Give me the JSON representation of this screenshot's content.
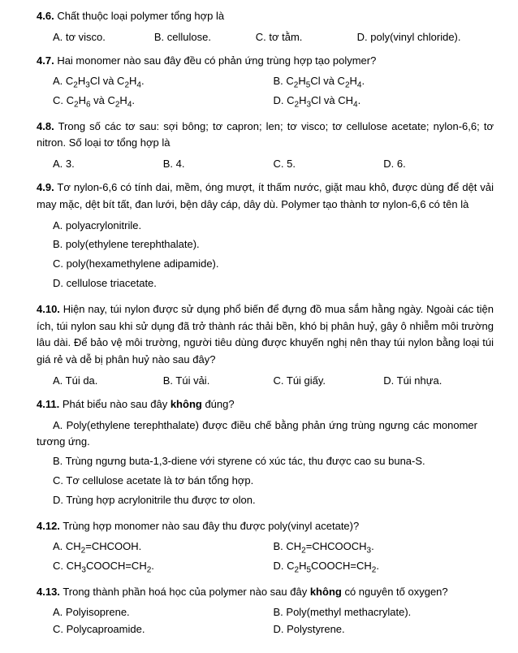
{
  "q46": {
    "num": "4.6.",
    "text": "Chất thuộc loại polymer tổng hợp là",
    "opts": [
      "A. tơ visco.",
      "B. cellulose.",
      "C. tơ tằm.",
      "D. poly(vinyl chloride)."
    ]
  },
  "q47": {
    "num": "4.7.",
    "text": "Hai monomer nào sau đây đều có phản ứng trùng hợp tạo polymer?",
    "opts": [
      "A. C<sub>2</sub>H<sub>3</sub>Cl và C<sub>2</sub>H<sub>4</sub>.",
      "B. C<sub>2</sub>H<sub>5</sub>Cl và C<sub>2</sub>H<sub>4</sub>.",
      "C. C<sub>2</sub>H<sub>6</sub> và C<sub>2</sub>H<sub>4</sub>.",
      "D. C<sub>2</sub>H<sub>3</sub>Cl và CH<sub>4</sub>."
    ]
  },
  "q48": {
    "num": "4.8.",
    "text": "Trong số các tơ sau: sợi bông; tơ capron; len; tơ visco; tơ cellulose acetate; nylon-6,6; tơ nitron. Số loại tơ tổng hợp là",
    "opts": [
      "A. 3.",
      "B. 4.",
      "C. 5.",
      "D. 6."
    ]
  },
  "q49": {
    "num": "4.9.",
    "text": "Tơ nylon-6,6 có tính dai, mềm, óng mượt, ít thấm nước, giặt mau khô, được dùng để dệt vải may mặc, dệt bít tất, đan lưới, bện dây cáp, dây dù. Polymer tạo thành tơ nylon-6,6 có tên là",
    "opts": [
      "A. polyacrylonitrile.",
      "B. poly(ethylene terephthalate).",
      "C. poly(hexamethylene adipamide).",
      "D. cellulose triacetate."
    ]
  },
  "q410": {
    "num": "4.10.",
    "text": "Hiện nay, túi nylon được sử dụng phổ biến để đựng đồ mua sắm hằng ngày. Ngoài các tiện ích, túi nylon sau khi sử dụng đã trở thành rác thải bền, khó bị phân huỷ, gây ô nhiễm môi trường lâu dài. Để bảo vệ môi trường, người tiêu dùng được khuyến nghị nên thay túi nylon bằng loại túi giá rẻ và dễ bị phân huỷ nào sau đây?",
    "opts": [
      "A. Túi da.",
      "B. Túi vải.",
      "C. Túi giấy.",
      "D. Túi nhựa."
    ]
  },
  "q411": {
    "num": "4.11.",
    "text_pre": "Phát biểu nào sau đây ",
    "text_bold": "không",
    "text_post": " đúng?",
    "opts": [
      "A. Poly(ethylene terephthalate) được điều chế bằng phản ứng trùng ngưng các monomer tương ứng.",
      "B. Trùng ngưng buta-1,3-diene với styrene có xúc tác, thu được cao su buna-S.",
      "C. Tơ cellulose acetate là tơ bán tổng hợp.",
      "D. Trùng hợp acrylonitrile thu được tơ olon."
    ]
  },
  "q412": {
    "num": "4.12.",
    "text": "Trùng hợp monomer nào sau đây thu được poly(vinyl acetate)?",
    "opts": [
      "A. CH<sub>2</sub>=CHCOOH.",
      "B. CH<sub>2</sub>=CHCOOCH<sub>3</sub>.",
      "C. CH<sub>3</sub>COOCH=CH<sub>2</sub>.",
      "D. C<sub>2</sub>H<sub>5</sub>COOCH=CH<sub>2</sub>."
    ]
  },
  "q413": {
    "num": "4.13.",
    "text_pre": "Trong thành phần hoá học của polymer nào sau đây ",
    "text_bold": "không",
    "text_post": " có nguyên tố oxygen?",
    "opts": [
      "A. Polyisoprene.",
      "B. Poly(methyl methacrylate).",
      "C. Polycaproamide.",
      "D. Polystyrene."
    ]
  }
}
